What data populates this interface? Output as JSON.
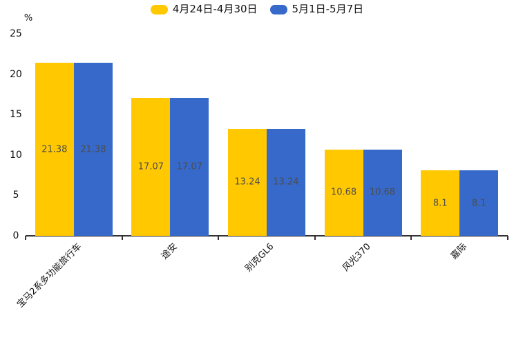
{
  "chart_data": {
    "type": "bar",
    "title": "",
    "unit_label": "%",
    "categories": [
      "宝马2系多功能旅行车",
      "途安",
      "别克GL6",
      "风光370",
      "嘉际"
    ],
    "series": [
      {
        "name": "4月24日-4月30日",
        "color": "#FFC801",
        "values": [
          21.38,
          17.07,
          13.24,
          10.68,
          8.1
        ]
      },
      {
        "name": "5月1日-5月7日",
        "color": "#3669C9",
        "values": [
          21.38,
          17.07,
          13.24,
          10.68,
          8.1
        ]
      }
    ],
    "ylim": [
      0,
      25
    ],
    "yticks": [
      0,
      5,
      10,
      15,
      20,
      25
    ],
    "legend_position": "top",
    "grid": false,
    "value_label_position": "inside-middle",
    "value_label_color": "#4d4d4d",
    "axis_color": "#333333",
    "text_color": "#111111",
    "background_color": "#ffffff"
  }
}
